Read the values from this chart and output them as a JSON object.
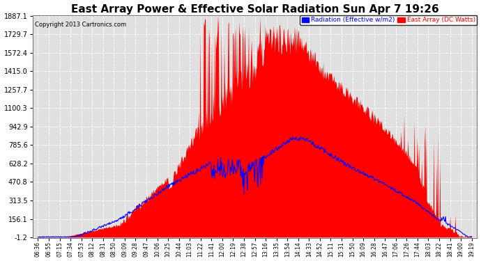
{
  "title": "East Array Power & Effective Solar Radiation Sun Apr 7 19:26",
  "copyright": "Copyright 2013 Cartronics.com",
  "legend_blue": "Radiation (Effective w/m2)",
  "legend_red": "East Array (DC Watts)",
  "yticks": [
    -1.2,
    156.1,
    313.5,
    470.8,
    628.2,
    785.6,
    942.9,
    1100.3,
    1257.7,
    1415.0,
    1572.4,
    1729.7,
    1887.1
  ],
  "ymin": -1.2,
  "ymax": 1887.1,
  "bg_color": "#ffffff",
  "plot_bg_color": "#e0e0e0",
  "grid_color": "#ffffff",
  "red_color": "#ff0000",
  "blue_color": "#0000ff",
  "xtick_labels": [
    "06:36",
    "06:55",
    "07:15",
    "07:34",
    "07:53",
    "08:12",
    "08:31",
    "08:50",
    "09:09",
    "09:28",
    "09:47",
    "10:06",
    "10:25",
    "10:44",
    "11:03",
    "11:22",
    "11:41",
    "12:00",
    "12:19",
    "12:38",
    "12:57",
    "13:16",
    "13:35",
    "13:54",
    "14:14",
    "14:33",
    "14:52",
    "15:11",
    "15:31",
    "15:50",
    "16:09",
    "16:28",
    "16:47",
    "17:06",
    "17:26",
    "17:44",
    "18:03",
    "18:22",
    "18:41",
    "19:00",
    "19:19"
  ],
  "title_fontsize": 11,
  "ytick_fontsize": 7,
  "xtick_fontsize": 5.5,
  "legend_fontsize": 6.5
}
